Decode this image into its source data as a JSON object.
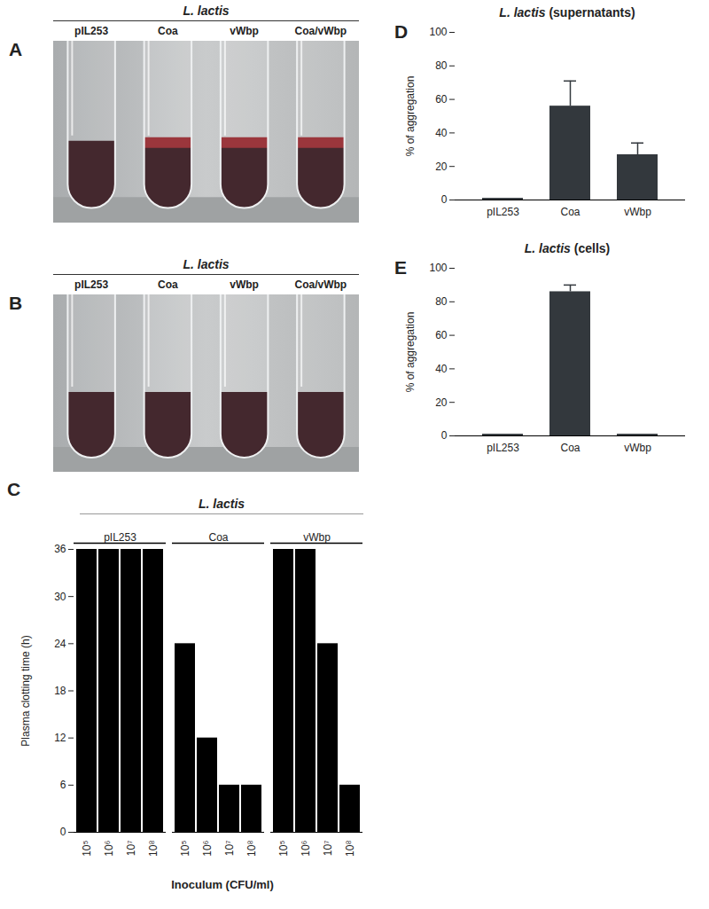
{
  "chart_data": [
    {
      "type": "photo",
      "panel": "A",
      "title": "L. lactis",
      "categories": [
        "pIL253",
        "Coa",
        "vWbp",
        "Coa/vWbp"
      ]
    },
    {
      "type": "photo",
      "panel": "B",
      "title": "L. lactis",
      "categories": [
        "pIL253",
        "Coa",
        "vWbp",
        "Coa/vWbp"
      ]
    },
    {
      "type": "bar",
      "panel": "C",
      "title": "L. lactis",
      "xlabel": "Inoculum (CFU/ml)",
      "ylabel": "Plasma clotting time (h)",
      "categories": [
        "10⁵",
        "10⁶",
        "10⁷",
        "10⁸"
      ],
      "series": [
        {
          "name": "pIL253",
          "values": [
            36,
            36,
            36,
            36
          ]
        },
        {
          "name": "Coa",
          "values": [
            24,
            12,
            6,
            6
          ]
        },
        {
          "name": "vWbp",
          "values": [
            36,
            36,
            24,
            6
          ]
        }
      ],
      "color": "#000000",
      "ylim": [
        0,
        36
      ],
      "yticks": [
        0,
        6,
        12,
        18,
        24,
        30,
        36
      ],
      "grid": false
    },
    {
      "type": "bar",
      "panel": "D",
      "title": "L. lactis (supernatants)",
      "ylabel": "% of aggregation",
      "categories": [
        "pIL253",
        "Coa",
        "vWbp"
      ],
      "values": [
        1,
        56,
        27
      ],
      "errors": [
        0,
        15,
        7
      ],
      "color": "#33383d",
      "ylim": [
        0,
        100
      ],
      "yticks": [
        0,
        20,
        40,
        60,
        80,
        100
      ],
      "grid": false
    },
    {
      "type": "bar",
      "panel": "E",
      "title": "L. lactis (cells)",
      "ylabel": "% of aggregation",
      "categories": [
        "pIL253",
        "Coa",
        "vWbp"
      ],
      "values": [
        1,
        86,
        1
      ],
      "errors": [
        0,
        4,
        0
      ],
      "color": "#33383d",
      "ylim": [
        0,
        100
      ],
      "yticks": [
        0,
        20,
        40,
        60,
        80,
        100
      ],
      "grid": false
    }
  ]
}
